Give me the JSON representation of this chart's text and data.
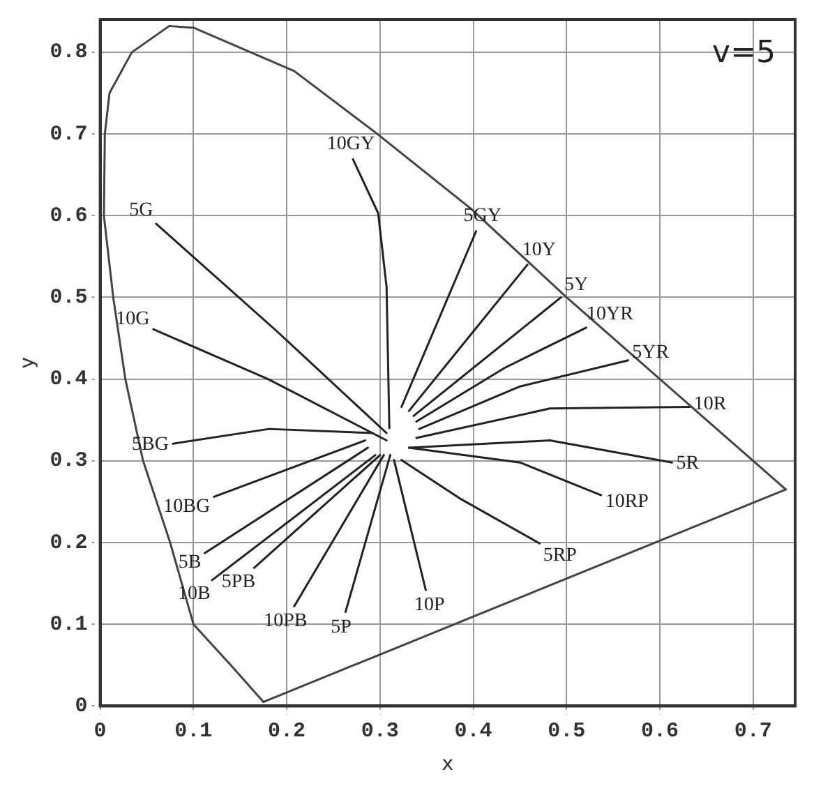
{
  "chart_data": {
    "type": "line",
    "xlabel": "x",
    "ylabel": "y",
    "xlim": [
      0,
      0.745
    ],
    "ylim": [
      0,
      0.84
    ],
    "xticks": [
      {
        "value": 0,
        "label": "0"
      },
      0.1,
      0.2,
      0.3,
      0.4,
      0.5,
      0.6,
      0.7
    ],
    "yticks": [
      {
        "value": 0,
        "label": "0"
      },
      0.1,
      0.2,
      0.3,
      0.4,
      0.5,
      0.6,
      0.7,
      0.8
    ],
    "grid": true,
    "legend": false,
    "marker": "none",
    "line_style": "solid",
    "annotations": [
      "v=5"
    ],
    "series": [
      {
        "color": "#444444",
        "x": [
          0.175,
          0.14,
          0.1,
          0.075,
          0.046,
          0.027,
          0.014,
          0.004,
          0.005,
          0.01,
          0.034,
          0.074,
          0.1,
          0.208,
          0.296,
          0.398,
          0.5,
          0.6,
          0.735
        ],
        "values": [
          0.005,
          0.05,
          0.1,
          0.2,
          0.3,
          0.4,
          0.5,
          0.6,
          0.7,
          0.75,
          0.8,
          0.832,
          0.83,
          0.777,
          0.701,
          0.608,
          0.5,
          0.4,
          0.265
        ]
      },
      {
        "color": "#444444",
        "x": [
          0.735,
          0.175
        ],
        "values": [
          0.265,
          0.005
        ]
      },
      {
        "name": "10GY",
        "color": "#222222",
        "x": [
          0.31,
          0.307,
          0.298,
          0.271
        ],
        "values": [
          0.34,
          0.513,
          0.603,
          0.669
        ]
      },
      {
        "name": "5G",
        "color": "#222222",
        "x": [
          0.307,
          0.189,
          0.06
        ],
        "values": [
          0.334,
          0.459,
          0.59
        ]
      },
      {
        "name": "10G",
        "color": "#222222",
        "x": [
          0.307,
          0.18,
          0.057
        ],
        "values": [
          0.325,
          0.4,
          0.461
        ]
      },
      {
        "name": "5BG",
        "color": "#222222",
        "x": [
          0.292,
          0.181,
          0.078
        ],
        "values": [
          0.334,
          0.339,
          0.321
        ]
      },
      {
        "name": "10BG",
        "color": "#222222",
        "x": [
          0.284,
          0.122
        ],
        "values": [
          0.325,
          0.256
        ]
      },
      {
        "name": "5B",
        "color": "#222222",
        "x": [
          0.287,
          0.112
        ],
        "values": [
          0.316,
          0.187
        ]
      },
      {
        "name": "10B",
        "color": "#222222",
        "x": [
          0.295,
          0.12
        ],
        "values": [
          0.307,
          0.154
        ]
      },
      {
        "name": "5PB",
        "color": "#222222",
        "x": [
          0.3,
          0.165
        ],
        "values": [
          0.307,
          0.169
        ]
      },
      {
        "name": "10PB",
        "color": "#222222",
        "x": [
          0.304,
          0.208
        ],
        "values": [
          0.307,
          0.122
        ]
      },
      {
        "name": "5P",
        "color": "#222222",
        "x": [
          0.311,
          0.263
        ],
        "values": [
          0.307,
          0.115
        ]
      },
      {
        "name": "10P",
        "color": "#222222",
        "x": [
          0.315,
          0.349
        ],
        "values": [
          0.301,
          0.142
        ]
      },
      {
        "name": "5RP",
        "color": "#222222",
        "x": [
          0.323,
          0.387,
          0.471
        ],
        "values": [
          0.301,
          0.253,
          0.199
        ]
      },
      {
        "name": "10RP",
        "color": "#222222",
        "x": [
          0.331,
          0.45,
          0.537
        ],
        "values": [
          0.316,
          0.298,
          0.258
        ]
      },
      {
        "name": "5R",
        "color": "#222222",
        "x": [
          0.331,
          0.482,
          0.613
        ],
        "values": [
          0.316,
          0.325,
          0.298
        ]
      },
      {
        "name": "10R",
        "color": "#222222",
        "x": [
          0.339,
          0.482,
          0.632
        ],
        "values": [
          0.328,
          0.364,
          0.366
        ]
      },
      {
        "name": "5YR",
        "color": "#222222",
        "x": [
          0.342,
          0.45,
          0.566
        ],
        "values": [
          0.339,
          0.391,
          0.423
        ]
      },
      {
        "name": "10YR",
        "color": "#222222",
        "x": [
          0.339,
          0.434,
          0.521
        ],
        "values": [
          0.348,
          0.414,
          0.463
        ]
      },
      {
        "name": "5Y",
        "color": "#222222",
        "x": [
          0.336,
          0.494
        ],
        "values": [
          0.355,
          0.5
        ]
      },
      {
        "name": "10Y",
        "color": "#222222",
        "x": [
          0.331,
          0.458
        ],
        "values": [
          0.361,
          0.54
        ]
      },
      {
        "name": "5GY",
        "color": "#222222",
        "x": [
          0.323,
          0.403
        ],
        "values": [
          0.366,
          0.581
        ]
      }
    ]
  }
}
